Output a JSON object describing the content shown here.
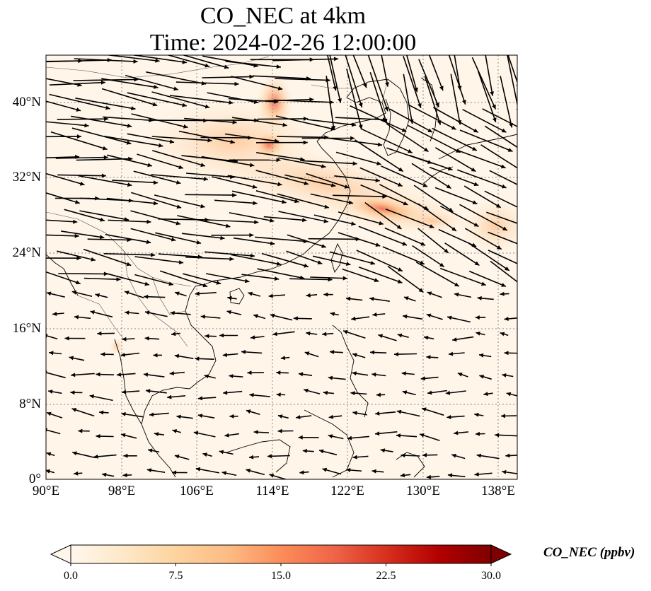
{
  "title": {
    "line1": "CO_NEC at 4km",
    "line2": "Time: 2024-02-26 12:00:00"
  },
  "map": {
    "projection": "PlateCarree",
    "lon_range": [
      90,
      140
    ],
    "lat_range": [
      0,
      45
    ],
    "gridlines": "dotted",
    "coastlines": true,
    "borders": true,
    "field": "CO_NEC",
    "colormap": "OrRd",
    "background_color": "#fff5e8",
    "vectors": "wind arrows (quiver)"
  },
  "y_ticks": [
    {
      "value": 40,
      "label": "40°N"
    },
    {
      "value": 32,
      "label": "32°N"
    },
    {
      "value": 24,
      "label": "24°N"
    },
    {
      "value": 16,
      "label": "16°N"
    },
    {
      "value": 8,
      "label": "8°N"
    },
    {
      "value": 0,
      "label": "0°"
    }
  ],
  "x_ticks": [
    {
      "value": 90,
      "label": "90°E"
    },
    {
      "value": 98,
      "label": "98°E"
    },
    {
      "value": 106,
      "label": "106°E"
    },
    {
      "value": 114,
      "label": "114°E"
    },
    {
      "value": 122,
      "label": "122°E"
    },
    {
      "value": 130,
      "label": "130°E"
    },
    {
      "value": 138,
      "label": "138°E"
    }
  ],
  "colorbar": {
    "label": "CO_NEC (ppbv)",
    "min": 0,
    "max": 30,
    "extend": "both",
    "ticks": [
      {
        "value": 0,
        "label": "0.0"
      },
      {
        "value": 7.5,
        "label": "7.5"
      },
      {
        "value": 15,
        "label": "15.0"
      },
      {
        "value": 22.5,
        "label": "22.5"
      },
      {
        "value": 30,
        "label": "30.0"
      }
    ],
    "colors": [
      "#fff7ec",
      "#fee8c8",
      "#fdd49e",
      "#fdbb84",
      "#fc8d59",
      "#ef6548",
      "#d7301f",
      "#b30000",
      "#7f0000"
    ]
  }
}
